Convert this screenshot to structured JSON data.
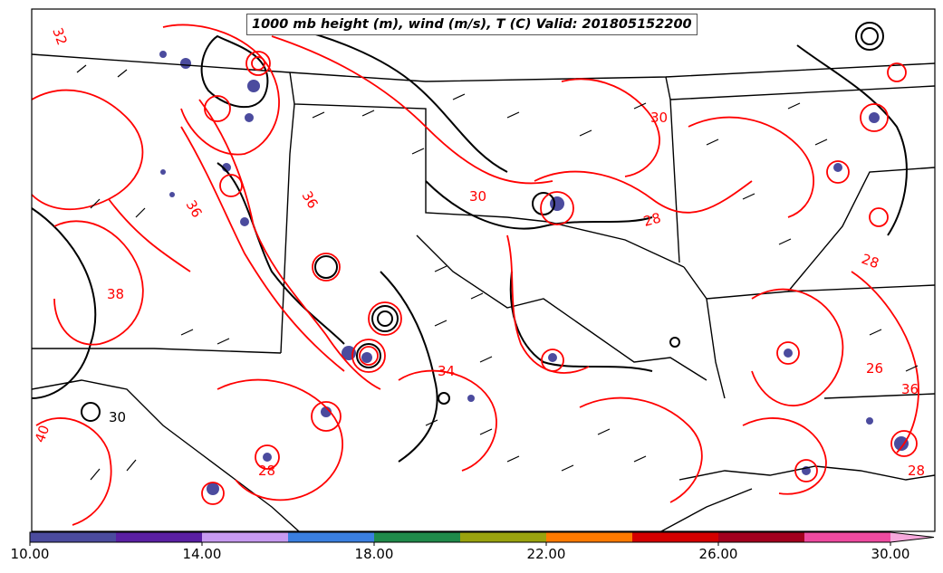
{
  "map": {
    "title": "1000 mb height (m), wind (m/s), T (C) Valid: 201805152200",
    "height_contour_color": "#000000",
    "temperature_contour_color": "#ff0000",
    "contour_labels": [
      {
        "text": "32",
        "color": "red"
      },
      {
        "text": "30",
        "color": "red"
      },
      {
        "text": "28",
        "color": "red"
      },
      {
        "text": "36",
        "color": "red"
      },
      {
        "text": "36",
        "color": "red"
      },
      {
        "text": "38",
        "color": "red"
      },
      {
        "text": "28",
        "color": "red"
      },
      {
        "text": "26",
        "color": "red"
      },
      {
        "text": "34",
        "color": "red"
      },
      {
        "text": "40",
        "color": "red"
      },
      {
        "text": "30",
        "color": "black"
      },
      {
        "text": "30",
        "color": "red"
      },
      {
        "text": "28",
        "color": "red"
      },
      {
        "text": "36",
        "color": "red"
      },
      {
        "text": "28",
        "color": "red"
      }
    ]
  },
  "colorbar": {
    "colors": [
      "#4b4b9e",
      "#5a1fa3",
      "#c79af0",
      "#3a7fe0",
      "#1f8a4a",
      "#9aa30e",
      "#ff7a00",
      "#d40000",
      "#a3001e",
      "#ee4aa0",
      "#f6a8dc"
    ],
    "tick_labels": [
      "10.00",
      "14.00",
      "18.00",
      "22.00",
      "26.00",
      "30.00"
    ]
  }
}
